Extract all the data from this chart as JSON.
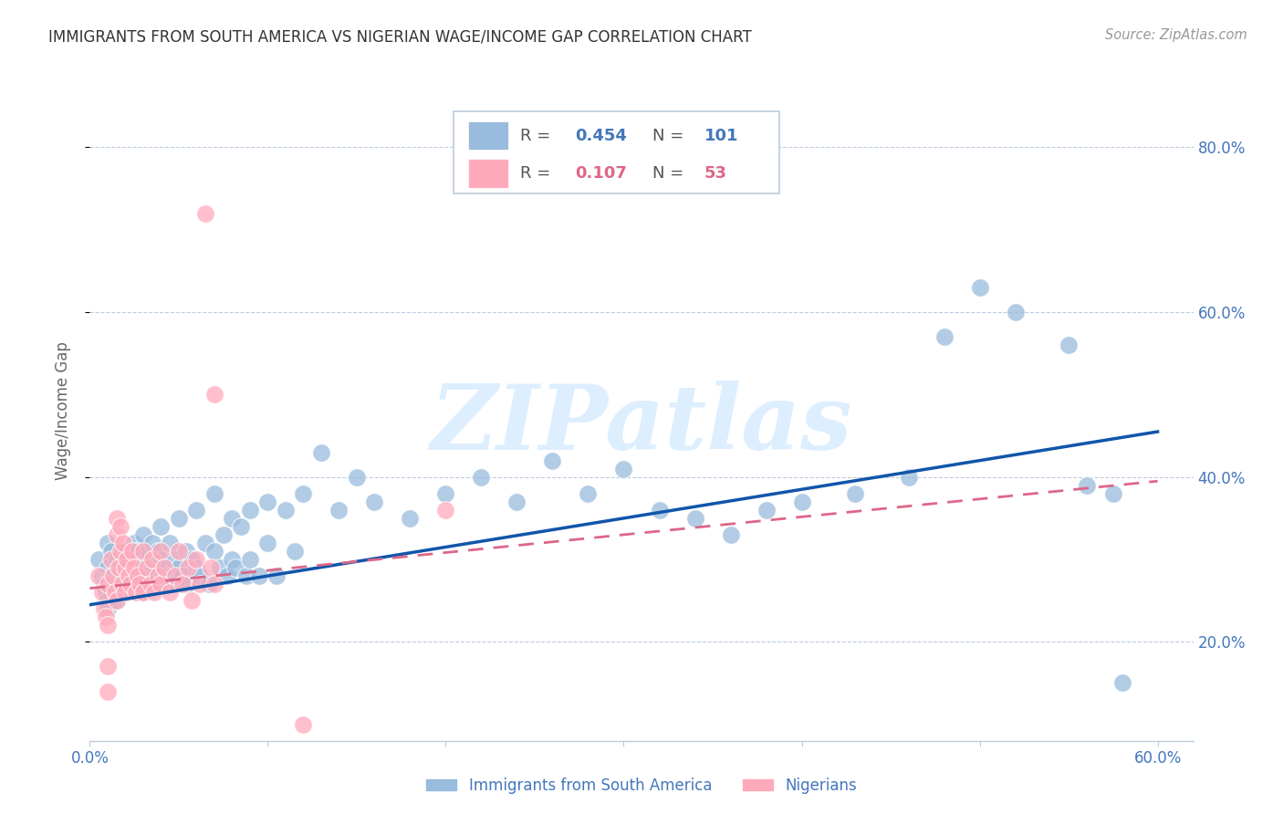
{
  "title": "IMMIGRANTS FROM SOUTH AMERICA VS NIGERIAN WAGE/INCOME GAP CORRELATION CHART",
  "source": "Source: ZipAtlas.com",
  "ylabel": "Wage/Income Gap",
  "xlim": [
    0.0,
    0.62
  ],
  "ylim": [
    0.08,
    0.88
  ],
  "yticks": [
    0.2,
    0.4,
    0.6,
    0.8
  ],
  "ytick_labels": [
    "20.0%",
    "40.0%",
    "60.0%",
    "80.0%"
  ],
  "xticks": [
    0.0,
    0.1,
    0.2,
    0.3,
    0.4,
    0.5,
    0.6
  ],
  "xtick_labels": [
    "0.0%",
    "",
    "",
    "",
    "",
    "",
    "60.0%"
  ],
  "blue_color": "#99BBDD",
  "pink_color": "#FFAABB",
  "trend_blue_color": "#1155AA",
  "trend_pink_color": "#DD6688",
  "axis_color": "#4477BB",
  "grid_color": "#BBCCDD",
  "watermark_text": "ZIPatlas",
  "watermark_color": "#DDEEFF",
  "blue_scatter": [
    [
      0.005,
      0.3
    ],
    [
      0.007,
      0.28
    ],
    [
      0.008,
      0.27
    ],
    [
      0.009,
      0.26
    ],
    [
      0.01,
      0.25
    ],
    [
      0.01,
      0.29
    ],
    [
      0.01,
      0.32
    ],
    [
      0.01,
      0.24
    ],
    [
      0.012,
      0.31
    ],
    [
      0.012,
      0.28
    ],
    [
      0.013,
      0.27
    ],
    [
      0.014,
      0.26
    ],
    [
      0.015,
      0.3
    ],
    [
      0.015,
      0.25
    ],
    [
      0.016,
      0.29
    ],
    [
      0.016,
      0.28
    ],
    [
      0.017,
      0.27
    ],
    [
      0.018,
      0.31
    ],
    [
      0.018,
      0.26
    ],
    [
      0.019,
      0.3
    ],
    [
      0.02,
      0.29
    ],
    [
      0.02,
      0.28
    ],
    [
      0.02,
      0.27
    ],
    [
      0.021,
      0.31
    ],
    [
      0.021,
      0.26
    ],
    [
      0.022,
      0.3
    ],
    [
      0.022,
      0.28
    ],
    [
      0.023,
      0.29
    ],
    [
      0.024,
      0.27
    ],
    [
      0.025,
      0.32
    ],
    [
      0.025,
      0.28
    ],
    [
      0.026,
      0.31
    ],
    [
      0.027,
      0.27
    ],
    [
      0.028,
      0.3
    ],
    [
      0.029,
      0.26
    ],
    [
      0.03,
      0.33
    ],
    [
      0.03,
      0.29
    ],
    [
      0.031,
      0.28
    ],
    [
      0.032,
      0.31
    ],
    [
      0.033,
      0.27
    ],
    [
      0.035,
      0.32
    ],
    [
      0.035,
      0.29
    ],
    [
      0.036,
      0.28
    ],
    [
      0.038,
      0.31
    ],
    [
      0.039,
      0.27
    ],
    [
      0.04,
      0.34
    ],
    [
      0.04,
      0.3
    ],
    [
      0.042,
      0.29
    ],
    [
      0.044,
      0.28
    ],
    [
      0.045,
      0.32
    ],
    [
      0.046,
      0.28
    ],
    [
      0.047,
      0.3
    ],
    [
      0.048,
      0.27
    ],
    [
      0.05,
      0.35
    ],
    [
      0.05,
      0.29
    ],
    [
      0.052,
      0.28
    ],
    [
      0.054,
      0.31
    ],
    [
      0.055,
      0.27
    ],
    [
      0.057,
      0.3
    ],
    [
      0.06,
      0.36
    ],
    [
      0.06,
      0.29
    ],
    [
      0.062,
      0.28
    ],
    [
      0.065,
      0.32
    ],
    [
      0.067,
      0.27
    ],
    [
      0.07,
      0.38
    ],
    [
      0.07,
      0.31
    ],
    [
      0.073,
      0.29
    ],
    [
      0.075,
      0.33
    ],
    [
      0.077,
      0.28
    ],
    [
      0.08,
      0.35
    ],
    [
      0.08,
      0.3
    ],
    [
      0.082,
      0.29
    ],
    [
      0.085,
      0.34
    ],
    [
      0.088,
      0.28
    ],
    [
      0.09,
      0.36
    ],
    [
      0.09,
      0.3
    ],
    [
      0.095,
      0.28
    ],
    [
      0.1,
      0.37
    ],
    [
      0.1,
      0.32
    ],
    [
      0.105,
      0.28
    ],
    [
      0.11,
      0.36
    ],
    [
      0.115,
      0.31
    ],
    [
      0.12,
      0.38
    ],
    [
      0.13,
      0.43
    ],
    [
      0.14,
      0.36
    ],
    [
      0.15,
      0.4
    ],
    [
      0.16,
      0.37
    ],
    [
      0.18,
      0.35
    ],
    [
      0.2,
      0.38
    ],
    [
      0.22,
      0.4
    ],
    [
      0.24,
      0.37
    ],
    [
      0.26,
      0.42
    ],
    [
      0.28,
      0.38
    ],
    [
      0.3,
      0.41
    ],
    [
      0.32,
      0.36
    ],
    [
      0.34,
      0.35
    ],
    [
      0.36,
      0.33
    ],
    [
      0.38,
      0.36
    ],
    [
      0.4,
      0.37
    ],
    [
      0.43,
      0.38
    ],
    [
      0.46,
      0.4
    ],
    [
      0.48,
      0.57
    ],
    [
      0.5,
      0.63
    ],
    [
      0.52,
      0.6
    ],
    [
      0.55,
      0.56
    ],
    [
      0.56,
      0.39
    ],
    [
      0.575,
      0.38
    ],
    [
      0.58,
      0.15
    ]
  ],
  "pink_scatter": [
    [
      0.005,
      0.28
    ],
    [
      0.007,
      0.26
    ],
    [
      0.008,
      0.24
    ],
    [
      0.009,
      0.23
    ],
    [
      0.01,
      0.22
    ],
    [
      0.01,
      0.27
    ],
    [
      0.01,
      0.17
    ],
    [
      0.01,
      0.14
    ],
    [
      0.012,
      0.3
    ],
    [
      0.013,
      0.28
    ],
    [
      0.014,
      0.26
    ],
    [
      0.015,
      0.25
    ],
    [
      0.015,
      0.33
    ],
    [
      0.015,
      0.35
    ],
    [
      0.016,
      0.29
    ],
    [
      0.017,
      0.34
    ],
    [
      0.017,
      0.31
    ],
    [
      0.018,
      0.27
    ],
    [
      0.019,
      0.32
    ],
    [
      0.02,
      0.29
    ],
    [
      0.02,
      0.26
    ],
    [
      0.021,
      0.3
    ],
    [
      0.022,
      0.28
    ],
    [
      0.023,
      0.27
    ],
    [
      0.024,
      0.31
    ],
    [
      0.025,
      0.29
    ],
    [
      0.026,
      0.26
    ],
    [
      0.027,
      0.28
    ],
    [
      0.028,
      0.27
    ],
    [
      0.03,
      0.31
    ],
    [
      0.03,
      0.26
    ],
    [
      0.032,
      0.29
    ],
    [
      0.034,
      0.27
    ],
    [
      0.035,
      0.3
    ],
    [
      0.036,
      0.26
    ],
    [
      0.038,
      0.28
    ],
    [
      0.04,
      0.31
    ],
    [
      0.04,
      0.27
    ],
    [
      0.042,
      0.29
    ],
    [
      0.045,
      0.26
    ],
    [
      0.048,
      0.28
    ],
    [
      0.05,
      0.31
    ],
    [
      0.052,
      0.27
    ],
    [
      0.055,
      0.29
    ],
    [
      0.057,
      0.25
    ],
    [
      0.06,
      0.3
    ],
    [
      0.062,
      0.27
    ],
    [
      0.065,
      0.72
    ],
    [
      0.068,
      0.29
    ],
    [
      0.07,
      0.5
    ],
    [
      0.07,
      0.27
    ],
    [
      0.12,
      0.1
    ],
    [
      0.2,
      0.36
    ]
  ],
  "blue_trend_x0": 0.0,
  "blue_trend_y0": 0.245,
  "blue_trend_x1": 0.6,
  "blue_trend_y1": 0.455,
  "pink_trend_x0": 0.0,
  "pink_trend_y0": 0.265,
  "pink_trend_x1": 0.6,
  "pink_trend_y1": 0.395
}
